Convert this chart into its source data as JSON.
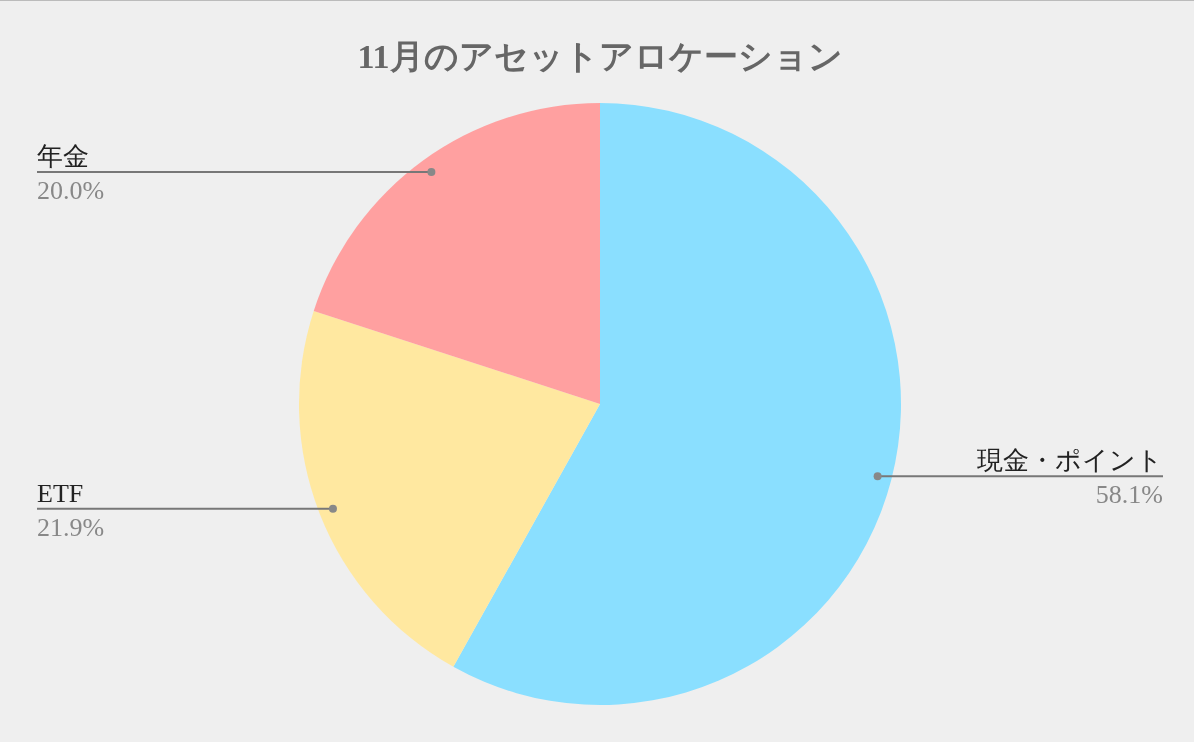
{
  "chart_data": {
    "type": "pie",
    "title": "11月のアセットアロケーション",
    "categories": [
      "現金・ポイント",
      "ETF",
      "年金"
    ],
    "values": [
      58.1,
      21.9,
      20.0
    ],
    "colors": [
      "#8adfff",
      "#ffe8a0",
      "#ffa0a0"
    ],
    "value_labels": [
      "58.1%",
      "21.9%",
      "20.0%"
    ]
  }
}
